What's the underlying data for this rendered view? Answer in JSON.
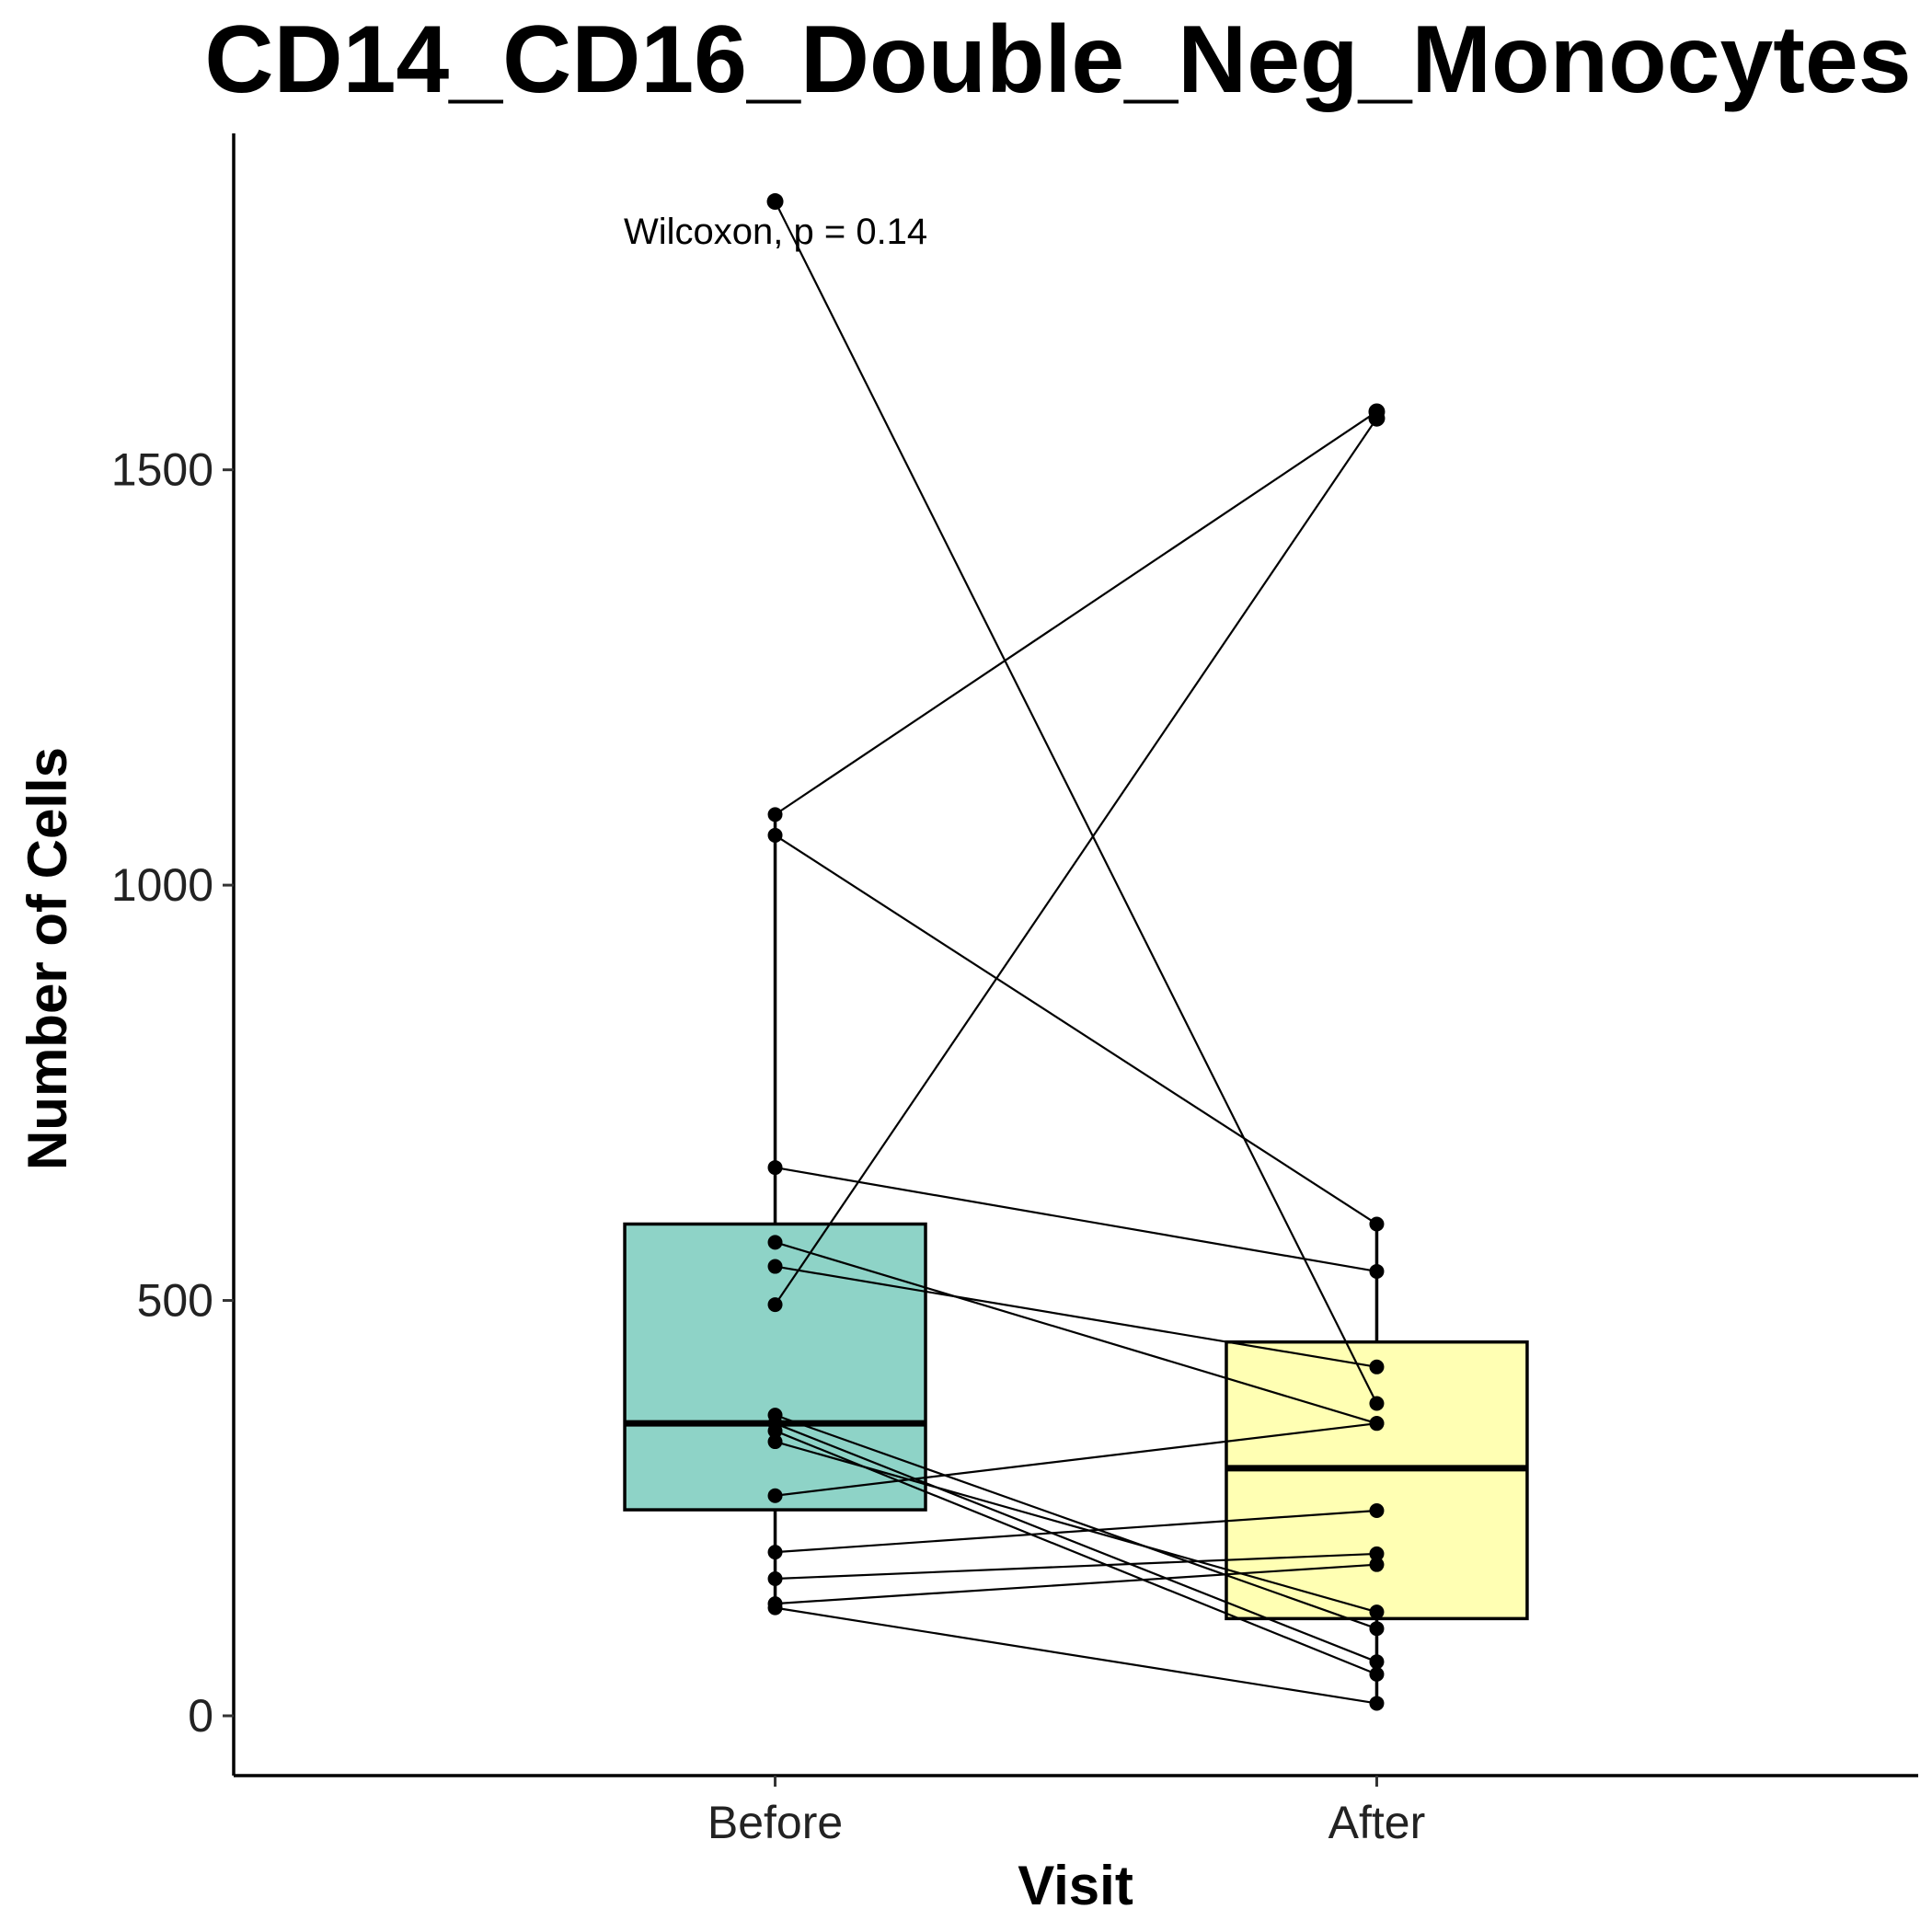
{
  "chart_data": {
    "type": "box",
    "title": "CD14_CD16_Double_Neg_Monocytes",
    "xlabel": "Visit",
    "ylabel": "Number of Cells",
    "categories": [
      "Before",
      "After"
    ],
    "ylim": [
      -72,
      1905
    ],
    "yticks": [
      0,
      500,
      1000,
      1500
    ],
    "annotation": "Wilcoxon, p = 0.14",
    "box_colors": [
      "#8ED3C7",
      "#FFFFB3"
    ],
    "boxes": [
      {
        "category": "Before",
        "whisker_low": 130,
        "q1": 248,
        "median": 352,
        "q3": 592,
        "whisker_high": 1085
      },
      {
        "category": "After",
        "whisker_low": 15,
        "q1": 117,
        "median": 298,
        "q3": 450,
        "whisker_high": 592
      }
    ],
    "outliers": [
      {
        "category": "Before",
        "y": 1823
      },
      {
        "category": "After",
        "y": 1562
      },
      {
        "category": "After",
        "y": 1570
      }
    ],
    "pairs": [
      {
        "before": 1823,
        "after": 376
      },
      {
        "before": 1085,
        "after": 1570
      },
      {
        "before": 1060,
        "after": 592
      },
      {
        "before": 495,
        "after": 1562
      },
      {
        "before": 660,
        "after": 535
      },
      {
        "before": 570,
        "after": 352
      },
      {
        "before": 541,
        "after": 420
      },
      {
        "before": 362,
        "after": 105
      },
      {
        "before": 352,
        "after": 65
      },
      {
        "before": 343,
        "after": 50
      },
      {
        "before": 330,
        "after": 125
      },
      {
        "before": 265,
        "after": 352
      },
      {
        "before": 197,
        "after": 247
      },
      {
        "before": 165,
        "after": 195
      },
      {
        "before": 135,
        "after": 182
      },
      {
        "before": 130,
        "after": 15
      }
    ]
  }
}
